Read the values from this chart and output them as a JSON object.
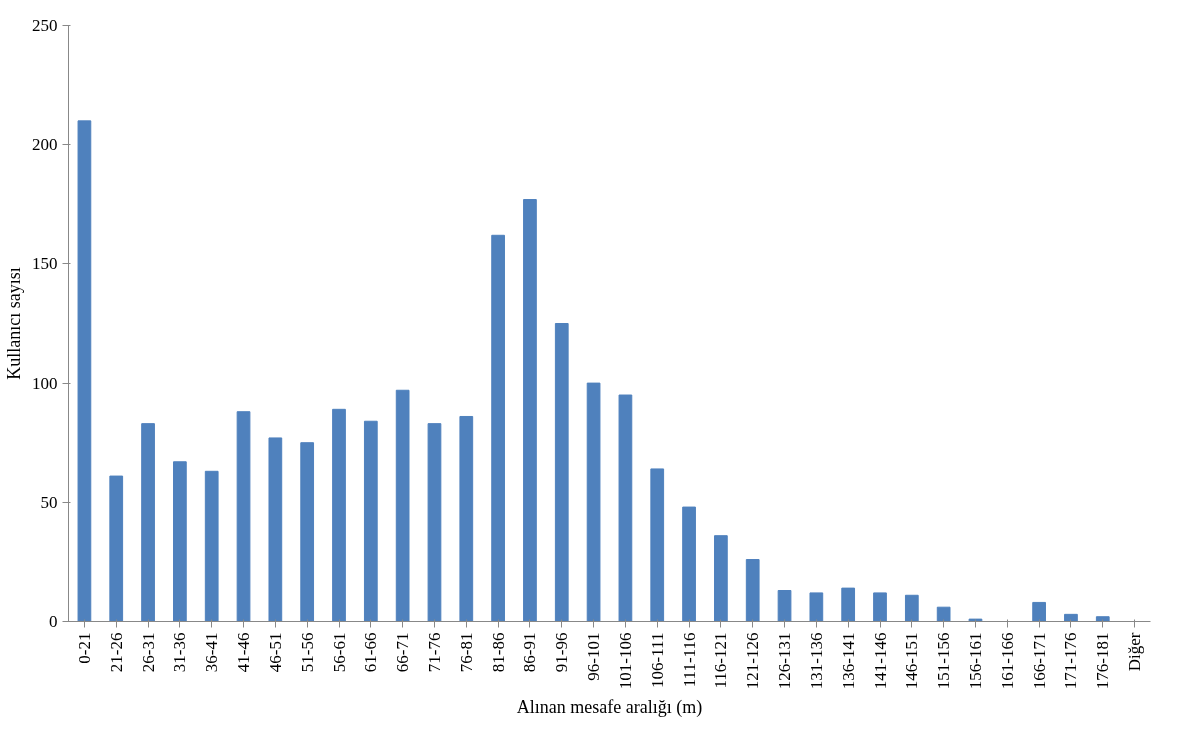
{
  "chart_data": {
    "type": "bar",
    "xlabel": "Alınan mesafe aralığı (m)",
    "ylabel": "Kullanıcı sayısı",
    "categories": [
      "0-21",
      "21-26",
      "26-31",
      "31-36",
      "36-41",
      "41-46",
      "46-51",
      "51-56",
      "56-61",
      "61-66",
      "66-71",
      "71-76",
      "76-81",
      "81-86",
      "86-91",
      "91-96",
      "96-101",
      "101-106",
      "106-111",
      "111-116",
      "116-121",
      "121-126",
      "126-131",
      "131-136",
      "136-141",
      "141-146",
      "146-151",
      "151-156",
      "156-161",
      "161-166",
      "166-171",
      "171-176",
      "176-181",
      "Diğer"
    ],
    "values": [
      210,
      61,
      83,
      67,
      63,
      88,
      77,
      75,
      89,
      84,
      97,
      83,
      86,
      162,
      177,
      125,
      100,
      95,
      64,
      48,
      36,
      26,
      13,
      12,
      14,
      12,
      11,
      6,
      1,
      0,
      8,
      3,
      2,
      0
    ],
    "color": "#4f81bd",
    "ylim": [
      0,
      250
    ],
    "yticks": [
      0,
      50,
      100,
      150,
      200,
      250
    ],
    "grid": false
  }
}
